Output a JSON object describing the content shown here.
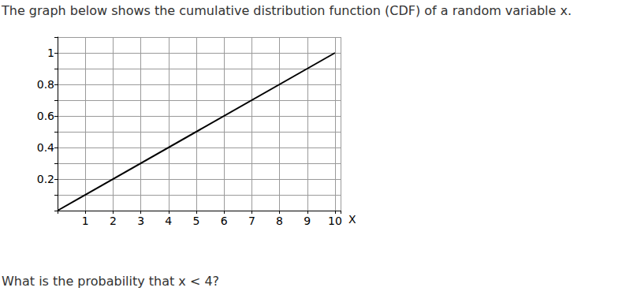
{
  "chart_data": {
    "type": "line",
    "title": "The graph below shows the cumulative distribution function (CDF) of a random variable x.",
    "annotations": [
      "What is the probability that x < 4?"
    ],
    "x_label": "X",
    "x": [
      0,
      10
    ],
    "values": [
      0,
      1
    ],
    "color": "#000000",
    "xlim": [
      0,
      10.2
    ],
    "xticks": [
      1,
      2,
      3,
      4,
      5,
      6,
      7,
      8,
      9,
      10
    ],
    "ylim": [
      0,
      1.1
    ],
    "yticks": [
      0.2,
      0.4,
      0.6,
      0.8,
      1
    ],
    "grid": true
  }
}
